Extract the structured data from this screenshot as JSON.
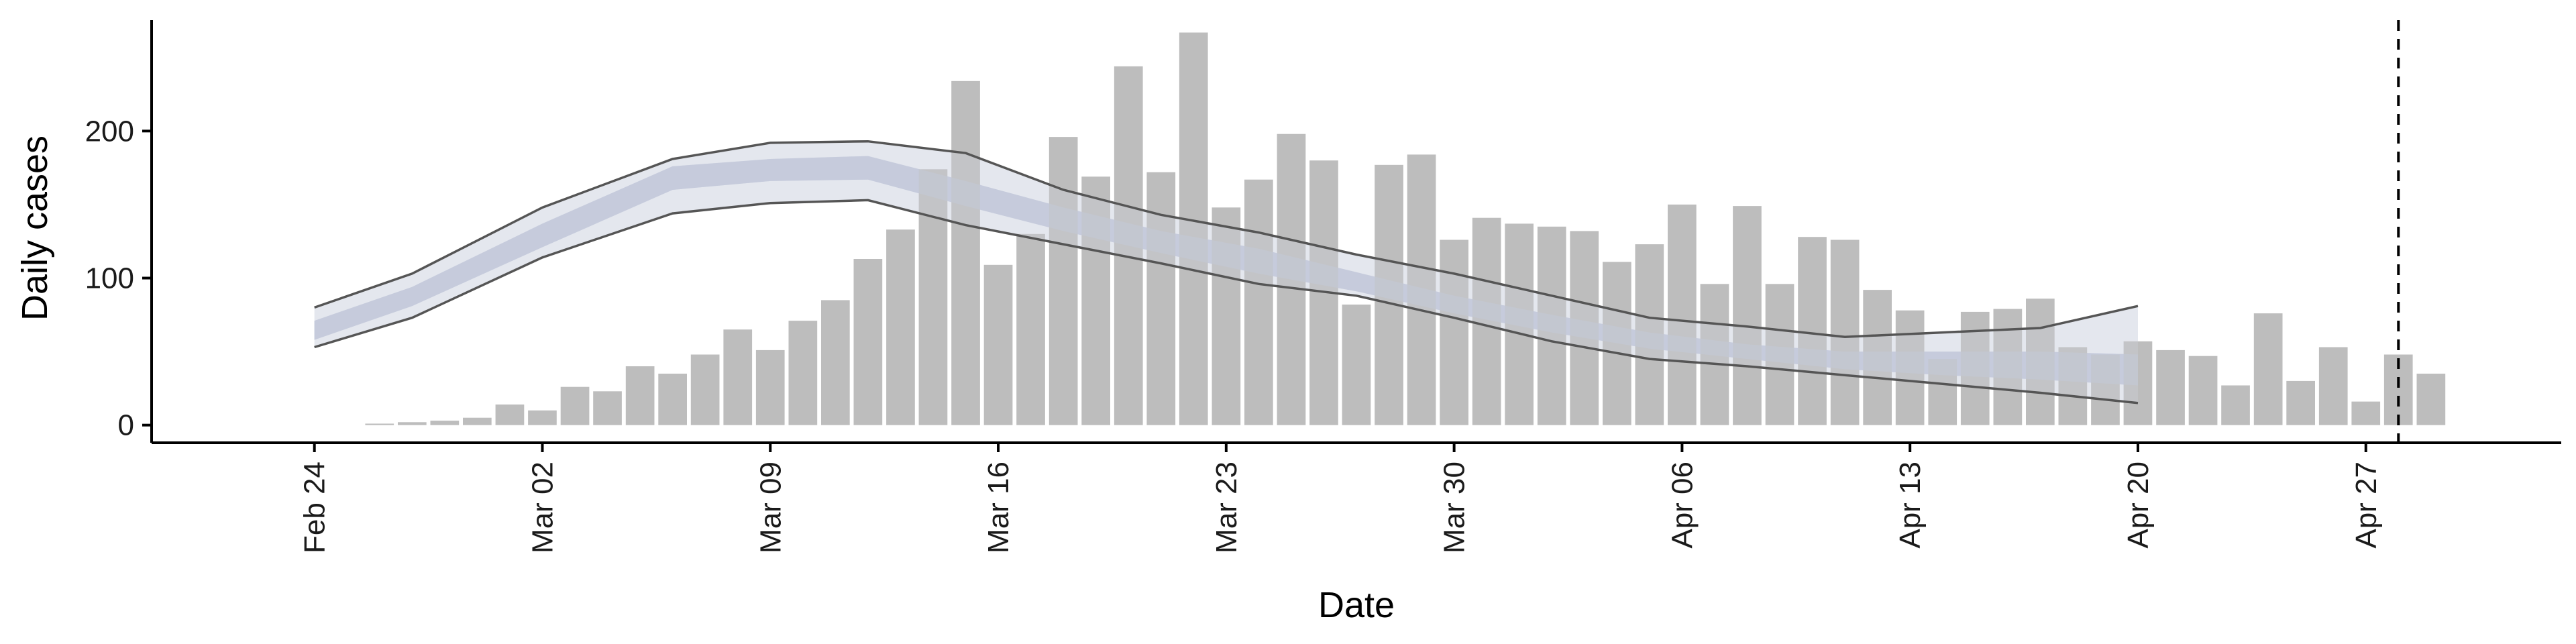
{
  "chart_data": {
    "type": "bar",
    "xlabel": "Date",
    "ylabel": "Daily cases",
    "ylim": [
      -12,
      280
    ],
    "yticks": [
      0,
      100,
      200
    ],
    "xlim": [
      "2020-02-19",
      "2020-05-03"
    ],
    "xticks": [
      {
        "date": "2020-02-24",
        "label": "Feb 24"
      },
      {
        "date": "2020-03-02",
        "label": "Mar 02"
      },
      {
        "date": "2020-03-09",
        "label": "Mar 09"
      },
      {
        "date": "2020-03-16",
        "label": "Mar 16"
      },
      {
        "date": "2020-03-23",
        "label": "Mar 23"
      },
      {
        "date": "2020-03-30",
        "label": "Mar 30"
      },
      {
        "date": "2020-04-06",
        "label": "Apr 06"
      },
      {
        "date": "2020-04-13",
        "label": "Apr 13"
      },
      {
        "date": "2020-04-20",
        "label": "Apr 20"
      },
      {
        "date": "2020-04-27",
        "label": "Apr 27"
      }
    ],
    "grid": false,
    "bar_color": "#bdbdbd",
    "vline_date": "2020-04-28",
    "bars": {
      "dates": [
        "2020-02-26",
        "2020-02-27",
        "2020-02-28",
        "2020-02-29",
        "2020-03-01",
        "2020-03-02",
        "2020-03-03",
        "2020-03-04",
        "2020-03-05",
        "2020-03-06",
        "2020-03-07",
        "2020-03-08",
        "2020-03-09",
        "2020-03-10",
        "2020-03-11",
        "2020-03-12",
        "2020-03-13",
        "2020-03-14",
        "2020-03-15",
        "2020-03-16",
        "2020-03-17",
        "2020-03-18",
        "2020-03-19",
        "2020-03-20",
        "2020-03-21",
        "2020-03-22",
        "2020-03-23",
        "2020-03-24",
        "2020-03-25",
        "2020-03-26",
        "2020-03-27",
        "2020-03-28",
        "2020-03-29",
        "2020-03-30",
        "2020-03-31",
        "2020-04-01",
        "2020-04-02",
        "2020-04-03",
        "2020-04-04",
        "2020-04-05",
        "2020-04-06",
        "2020-04-07",
        "2020-04-08",
        "2020-04-09",
        "2020-04-10",
        "2020-04-11",
        "2020-04-12",
        "2020-04-13",
        "2020-04-14",
        "2020-04-15",
        "2020-04-16",
        "2020-04-17",
        "2020-04-18",
        "2020-04-19",
        "2020-04-20",
        "2020-04-21",
        "2020-04-22",
        "2020-04-23",
        "2020-04-24",
        "2020-04-25",
        "2020-04-26",
        "2020-04-27",
        "2020-04-28",
        "2020-04-29"
      ],
      "values": [
        1,
        2,
        3,
        5,
        14,
        10,
        26,
        23,
        40,
        35,
        48,
        65,
        51,
        71,
        85,
        113,
        133,
        174,
        234,
        109,
        130,
        196,
        169,
        244,
        172,
        267,
        148,
        167,
        198,
        180,
        82,
        177,
        184,
        126,
        141,
        137,
        135,
        132,
        111,
        123,
        150,
        96,
        149,
        96,
        128,
        126,
        92,
        78,
        45,
        77,
        79,
        86,
        53,
        48,
        57,
        51,
        47,
        27,
        76,
        30,
        53,
        16,
        48,
        35
      ]
    },
    "series": [
      {
        "dates": [
          "2020-02-24",
          "2020-02-27",
          "2020-03-02",
          "2020-03-06",
          "2020-03-09",
          "2020-03-12",
          "2020-03-15",
          "2020-03-18",
          "2020-03-21",
          "2020-03-24",
          "2020-03-27",
          "2020-03-30",
          "2020-04-02",
          "2020-04-05",
          "2020-04-08",
          "2020-04-11",
          "2020-04-14",
          "2020-04-17",
          "2020-04-20"
        ],
        "upper": [
          80,
          103,
          148,
          181,
          192,
          193,
          185,
          160,
          143,
          131,
          116,
          103,
          88,
          73,
          67,
          60,
          63,
          66,
          81
        ],
        "lower": [
          53,
          73,
          114,
          144,
          151,
          153,
          136,
          123,
          110,
          96,
          88,
          73,
          57,
          45,
          40,
          34,
          28,
          22,
          15
        ],
        "core_upper": [
          71,
          94,
          137,
          176,
          181,
          183,
          166,
          148,
          132,
          120,
          104,
          88,
          75,
          63,
          55,
          50,
          50,
          50,
          48
        ],
        "core_lower": [
          58,
          81,
          121,
          160,
          166,
          167,
          149,
          132,
          117,
          103,
          91,
          76,
          63,
          52,
          45,
          38,
          34,
          31,
          27
        ],
        "upper_line": [
          80,
          103,
          148,
          181,
          192,
          193,
          185,
          160,
          143,
          131,
          116,
          103,
          88,
          73,
          67,
          60,
          63,
          66,
          81
        ],
        "lower_line": [
          53,
          73,
          114,
          144,
          151,
          153,
          136,
          123,
          110,
          96,
          88,
          73,
          57,
          45,
          40,
          34,
          28,
          22,
          15
        ]
      }
    ],
    "colors": {
      "ribbon_outer": "#d9dde8",
      "ribbon_inner": "#bcc3d6",
      "band_line": "#555555",
      "tail_fade": "#eef0f5",
      "axis": "#000000"
    }
  }
}
